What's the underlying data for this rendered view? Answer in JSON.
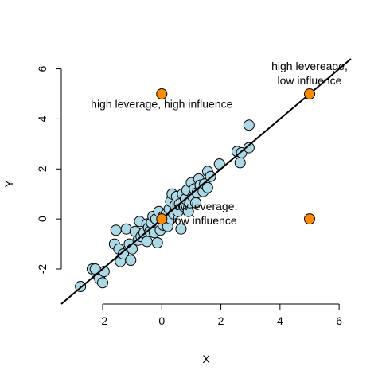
{
  "chart_data": {
    "type": "scatter",
    "xlabel": "X",
    "ylabel": "Y",
    "xlim": [
      -3.4,
      6.4
    ],
    "ylim": [
      -3.4,
      6.4
    ],
    "x_ticks": [
      "-2",
      "0",
      "2",
      "4",
      "6"
    ],
    "y_ticks": [
      "-2",
      "0",
      "2",
      "4",
      "6"
    ],
    "x_tick_values": [
      -2,
      0,
      2,
      4,
      6
    ],
    "y_tick_values": [
      -2,
      0,
      2,
      4,
      6
    ],
    "grid": false,
    "colors": {
      "normal_fill": "#add8e6",
      "highlight_fill": "#ff8c00",
      "stroke": "#000000"
    },
    "regression_line": {
      "intercept": 0.0,
      "slope": 1.0
    },
    "series": [
      {
        "points": [
          [
            -2.75,
            -2.7
          ],
          [
            -2.35,
            -2.0
          ],
          [
            -2.2,
            -2.2
          ],
          [
            -2.1,
            -2.4
          ],
          [
            -2.0,
            -2.55
          ],
          [
            -1.95,
            -2.1
          ],
          [
            -2.25,
            -2.0
          ],
          [
            -1.6,
            -1.0
          ],
          [
            -1.45,
            -1.2
          ],
          [
            -1.55,
            -0.45
          ],
          [
            -1.4,
            -1.7
          ],
          [
            -1.3,
            -1.4
          ],
          [
            -1.2,
            -0.4
          ],
          [
            -1.1,
            -1.0
          ],
          [
            -1.05,
            -1.65
          ],
          [
            -1.0,
            -1.2
          ],
          [
            -0.9,
            -0.5
          ],
          [
            -0.8,
            -0.85
          ],
          [
            -0.75,
            -0.1
          ],
          [
            -0.7,
            -0.7
          ],
          [
            -0.6,
            -0.55
          ],
          [
            -0.5,
            -0.2
          ],
          [
            -0.45,
            -0.35
          ],
          [
            -0.5,
            -0.9
          ],
          [
            -0.4,
            -0.5
          ],
          [
            -0.35,
            -0.15
          ],
          [
            -0.25,
            -0.55
          ],
          [
            -0.3,
            0.1
          ],
          [
            -0.2,
            0.0
          ],
          [
            -0.15,
            -0.95
          ],
          [
            -0.1,
            0.3
          ],
          [
            -0.05,
            -0.45
          ],
          [
            0.05,
            0.1
          ],
          [
            0.05,
            -0.25
          ],
          [
            0.15,
            0.2
          ],
          [
            0.2,
            -0.3
          ],
          [
            0.25,
            0.4
          ],
          [
            0.3,
            0.7
          ],
          [
            0.3,
            0.0
          ],
          [
            0.35,
            1.0
          ],
          [
            0.4,
            0.2
          ],
          [
            0.45,
            0.55
          ],
          [
            0.5,
            0.9
          ],
          [
            0.55,
            0.3
          ],
          [
            0.6,
            0.6
          ],
          [
            0.65,
            -0.4
          ],
          [
            0.7,
            1.0
          ],
          [
            0.75,
            0.5
          ],
          [
            0.8,
            0.8
          ],
          [
            0.85,
            1.15
          ],
          [
            0.9,
            0.3
          ],
          [
            0.95,
            0.65
          ],
          [
            1.0,
            1.45
          ],
          [
            1.05,
            0.9
          ],
          [
            1.1,
            1.2
          ],
          [
            1.15,
            0.65
          ],
          [
            1.2,
            1.05
          ],
          [
            1.25,
            1.6
          ],
          [
            1.3,
            1.35
          ],
          [
            1.4,
            1.1
          ],
          [
            1.45,
            1.4
          ],
          [
            1.55,
            1.25
          ],
          [
            1.55,
            1.9
          ],
          [
            1.65,
            1.7
          ],
          [
            1.95,
            2.2
          ],
          [
            2.55,
            2.7
          ],
          [
            2.65,
            2.25
          ],
          [
            2.7,
            2.65
          ],
          [
            2.95,
            3.75
          ],
          [
            2.95,
            2.85
          ]
        ]
      },
      {
        "highlight": true,
        "points": [
          [
            0,
            5
          ],
          [
            5,
            5
          ],
          [
            0,
            0
          ],
          [
            5,
            0
          ]
        ]
      }
    ],
    "annotations": [
      {
        "lines": [
          "high leverage, high influence"
        ],
        "x": 0.0,
        "y": 4.45
      },
      {
        "lines": [
          "high levereage,",
          "low influence"
        ],
        "x": 5.0,
        "y": 5.95
      },
      {
        "lines": [
          "low leverage,",
          "low influence"
        ],
        "x": 1.45,
        "y": 0.35
      }
    ]
  }
}
